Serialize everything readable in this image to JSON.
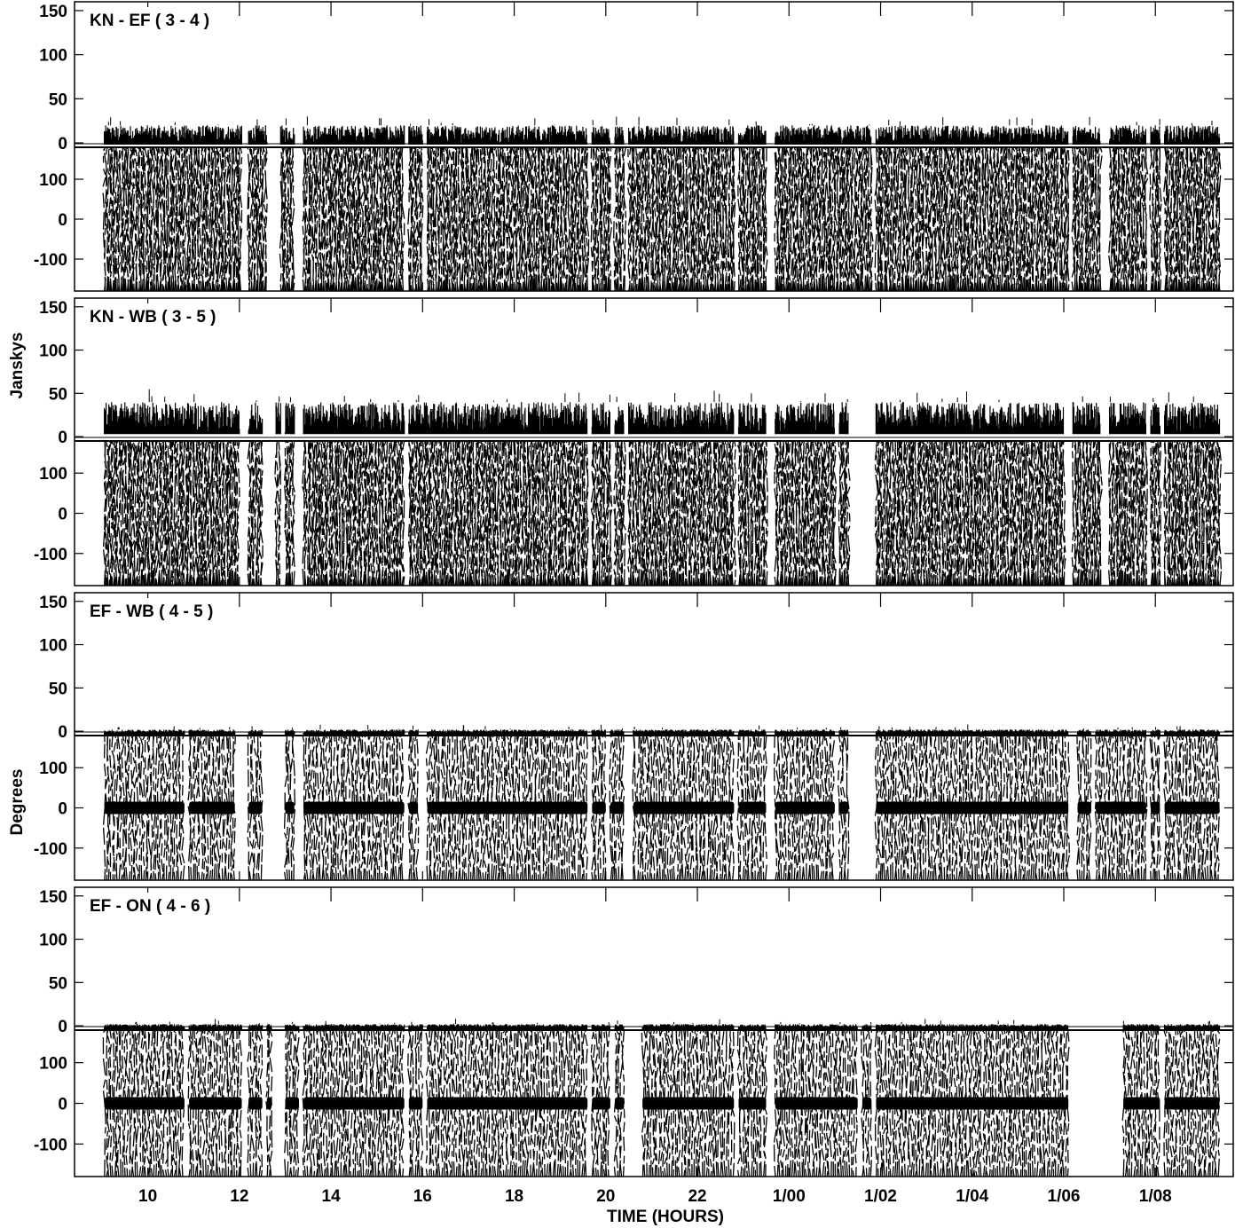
{
  "chart_data": {
    "type": "scatter",
    "xlabel": "TIME (HOURS)",
    "ylabel_amplitude": "Janskys",
    "ylabel_phase": "Degrees",
    "x_range_hours": [
      8.4,
      33.7
    ],
    "x_ticks": [
      {
        "value": 10,
        "label": "10"
      },
      {
        "value": 12,
        "label": "12"
      },
      {
        "value": 14,
        "label": "14"
      },
      {
        "value": 16,
        "label": "16"
      },
      {
        "value": 18,
        "label": "18"
      },
      {
        "value": 20,
        "label": "20"
      },
      {
        "value": 22,
        "label": "22"
      },
      {
        "value": 24,
        "label": "1/00"
      },
      {
        "value": 26,
        "label": "1/02"
      },
      {
        "value": 28,
        "label": "1/04"
      },
      {
        "value": 30,
        "label": "1/06"
      },
      {
        "value": 32,
        "label": "1/08"
      }
    ],
    "amp_ylim": [
      -5,
      160
    ],
    "amp_ticks": [
      0,
      50,
      100,
      150
    ],
    "phase_ylim": [
      -180,
      180
    ],
    "phase_ticks": [
      -100,
      0,
      100
    ],
    "panels": [
      {
        "name": "KN - EF ( 3 - 4 )",
        "amp_base": 0,
        "amp_top": 20,
        "amp_spike": 30,
        "phase_center": null,
        "segments": [
          [
            9.05,
            12.05
          ],
          [
            12.2,
            12.6
          ],
          [
            12.9,
            13.2
          ],
          [
            13.4,
            15.6
          ],
          [
            15.7,
            16.0
          ],
          [
            16.1,
            19.6
          ],
          [
            19.7,
            20.1
          ],
          [
            20.2,
            20.4
          ],
          [
            20.5,
            22.8
          ],
          [
            22.9,
            23.5
          ],
          [
            23.7,
            25.8
          ],
          [
            25.9,
            30.1
          ],
          [
            30.2,
            30.8
          ],
          [
            31.0,
            31.8
          ],
          [
            31.9,
            32.1
          ],
          [
            32.2,
            33.4
          ]
        ]
      },
      {
        "name": "KN - WB ( 3 - 5 )",
        "amp_base": 5,
        "amp_top": 40,
        "amp_spike": 55,
        "phase_center": null,
        "segments": [
          [
            9.05,
            12.0
          ],
          [
            12.2,
            12.5
          ],
          [
            12.8,
            12.9
          ],
          [
            13.0,
            13.2
          ],
          [
            13.4,
            15.6
          ],
          [
            15.7,
            19.6
          ],
          [
            19.7,
            20.1
          ],
          [
            20.2,
            20.4
          ],
          [
            20.5,
            22.8
          ],
          [
            22.9,
            23.5
          ],
          [
            23.7,
            25.0
          ],
          [
            25.1,
            25.3
          ],
          [
            25.9,
            30.0
          ],
          [
            30.2,
            30.8
          ],
          [
            31.0,
            31.8
          ],
          [
            31.9,
            32.1
          ],
          [
            32.2,
            33.4
          ]
        ]
      },
      {
        "name": "EF - WB ( 4 - 5 )",
        "amp_base": -2,
        "amp_top": 2,
        "amp_spike": 8,
        "phase_center": 0,
        "segments": [
          [
            9.05,
            10.8
          ],
          [
            10.9,
            11.9
          ],
          [
            12.2,
            12.5
          ],
          [
            13.0,
            13.2
          ],
          [
            13.4,
            15.6
          ],
          [
            15.7,
            15.9
          ],
          [
            16.1,
            19.6
          ],
          [
            19.7,
            20.0
          ],
          [
            20.1,
            20.4
          ],
          [
            20.6,
            22.8
          ],
          [
            22.9,
            23.5
          ],
          [
            23.7,
            25.0
          ],
          [
            25.1,
            25.3
          ],
          [
            25.9,
            30.1
          ],
          [
            30.3,
            30.6
          ],
          [
            30.7,
            31.8
          ],
          [
            31.9,
            32.1
          ],
          [
            32.2,
            33.4
          ]
        ]
      },
      {
        "name": "EF - ON ( 4 - 6 )",
        "amp_base": -2,
        "amp_top": 2,
        "amp_spike": 8,
        "phase_center": 0,
        "segments": [
          [
            9.05,
            10.8
          ],
          [
            10.9,
            12.05
          ],
          [
            12.2,
            12.5
          ],
          [
            12.6,
            12.7
          ],
          [
            13.0,
            13.3
          ],
          [
            13.4,
            15.6
          ],
          [
            15.7,
            16.0
          ],
          [
            16.1,
            19.6
          ],
          [
            19.7,
            20.1
          ],
          [
            20.2,
            20.4
          ],
          [
            20.8,
            22.8
          ],
          [
            22.9,
            23.5
          ],
          [
            23.7,
            25.5
          ],
          [
            25.6,
            25.8
          ],
          [
            25.9,
            30.1
          ],
          [
            31.3,
            32.1
          ],
          [
            32.2,
            33.4
          ]
        ]
      }
    ]
  }
}
